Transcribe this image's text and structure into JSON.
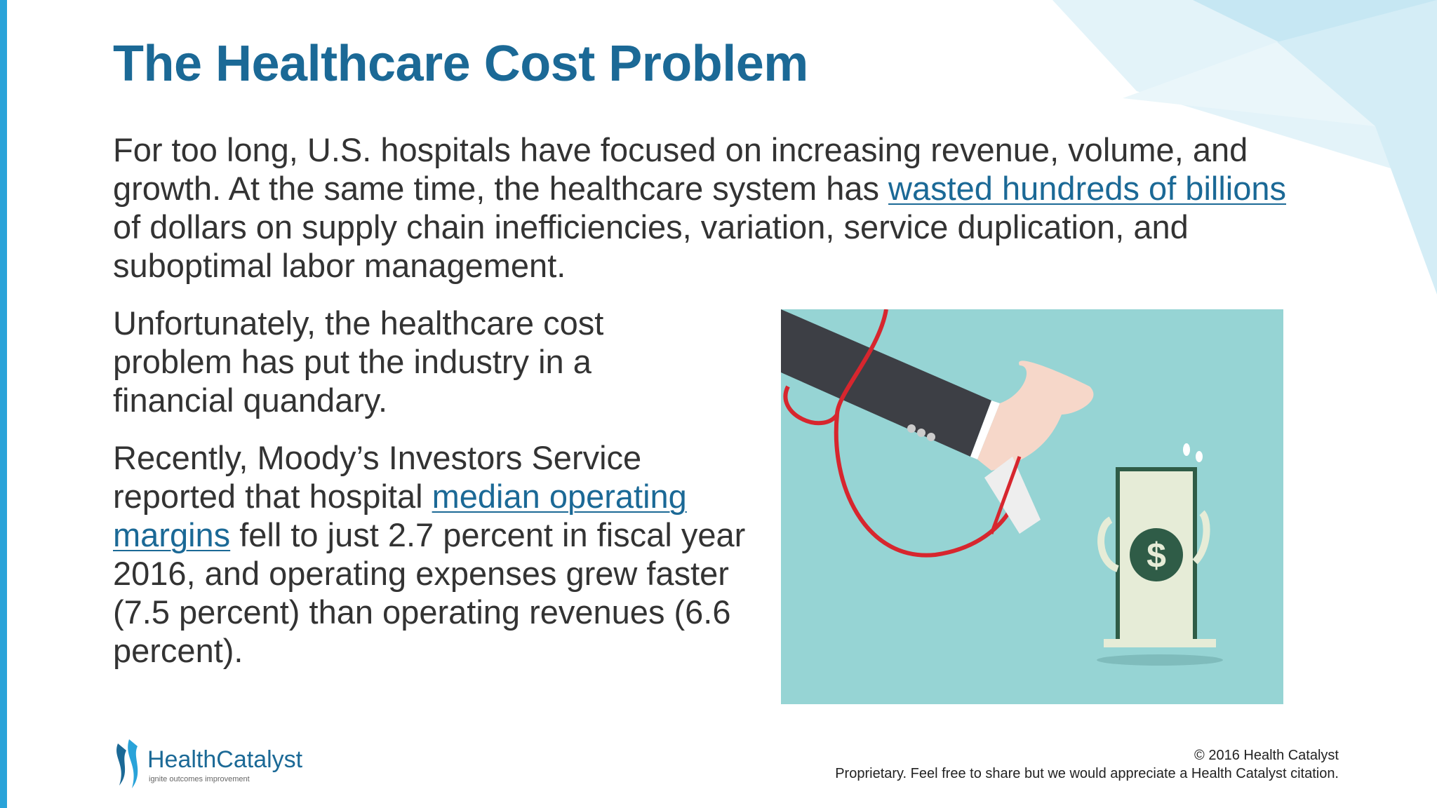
{
  "title": "The Healthcare Cost Problem",
  "paragraphs": [
    {
      "segments": [
        {
          "text": "For too long, U.S. hospitals have focused on increasing revenue, volume, and growth.  At the same time, the healthcare system has "
        },
        {
          "text": "wasted hundreds of billions",
          "link": true
        },
        {
          "text": " of dollars on supply chain inefficiencies, variation, service duplication, and suboptimal labor management."
        }
      ]
    },
    {
      "segments": [
        {
          "text": "Unfortunately, the healthcare cost problem has put the industry in a financial quandary."
        }
      ]
    },
    {
      "segments": [
        {
          "text": "Recently, Moody’s Investors Service reported that hospital "
        },
        {
          "text": "median operating margins",
          "link": true
        },
        {
          "text": " fell to just 2.7 percent in fiscal year 2016, and operating expenses grew faster (7.5 percent) than operating revenues (6.6 percent)."
        }
      ]
    }
  ],
  "logo": {
    "name": "HealthCatalyst",
    "tagline": "ignite outcomes improvement"
  },
  "footer": {
    "copyright": "© 2016 Health Catalyst",
    "notice": "Proprietary. Feel free to share but we would appreciate a Health Catalyst citation."
  }
}
